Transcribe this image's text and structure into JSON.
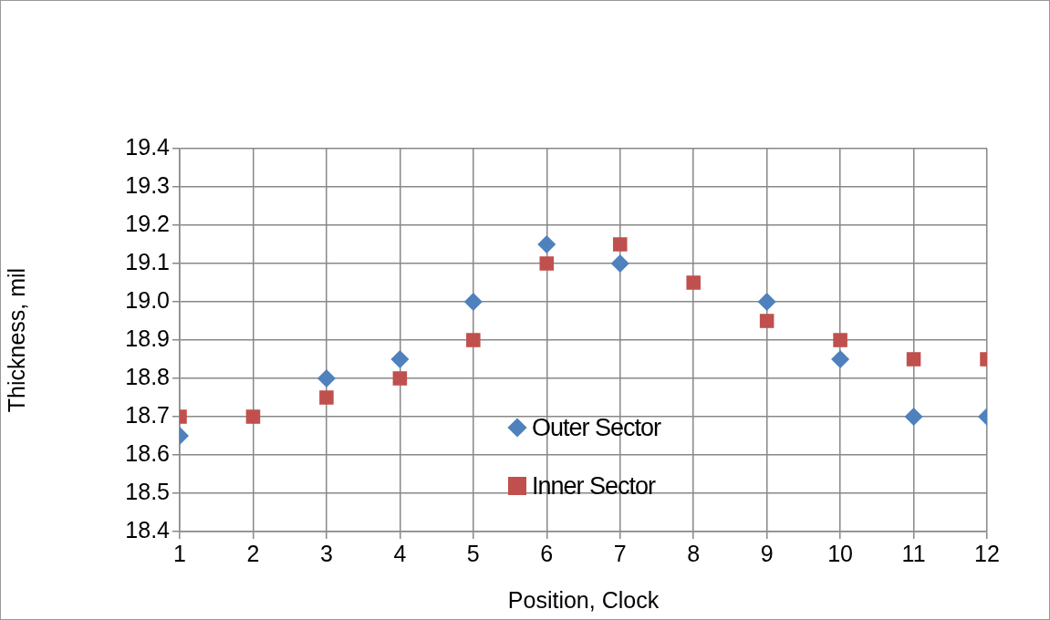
{
  "chart_data": {
    "type": "scatter",
    "xlabel": "Position, Clock",
    "ylabel": "Thickness, mil",
    "x": [
      1,
      2,
      3,
      4,
      5,
      6,
      7,
      8,
      9,
      10,
      11,
      12
    ],
    "series": [
      {
        "name": "Outer Sector",
        "color": "#4f81bd",
        "marker": "diamond",
        "values": [
          18.65,
          null,
          18.8,
          18.85,
          19.0,
          19.15,
          19.1,
          null,
          19.0,
          18.85,
          18.7,
          18.7
        ]
      },
      {
        "name": "Inner Sector",
        "color": "#c0504d",
        "marker": "square",
        "values": [
          18.7,
          18.7,
          18.75,
          18.8,
          18.9,
          19.1,
          19.15,
          19.05,
          18.95,
          18.9,
          18.85,
          18.85
        ]
      }
    ],
    "xlim": [
      1,
      12
    ],
    "xticks": [
      1,
      2,
      3,
      4,
      5,
      6,
      7,
      8,
      9,
      10,
      11,
      12
    ],
    "ylim": [
      18.4,
      19.4
    ],
    "yticks": [
      18.4,
      18.5,
      18.6,
      18.7,
      18.8,
      18.9,
      {
        "value": 19,
        "label": "19.0"
      },
      19.1,
      19.2,
      19.3,
      19.4
    ],
    "grid": true,
    "legend": "bottom"
  }
}
